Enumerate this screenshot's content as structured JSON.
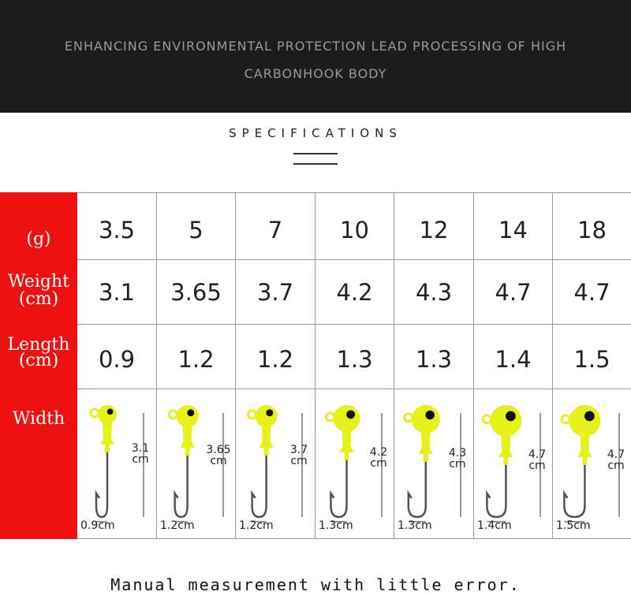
{
  "banner": {
    "line1": "ENHANCING ENVIRONMENTAL PROTECTION LEAD PROCESSING OF HIGH",
    "line2": "CARBONHOOK BODY"
  },
  "specs": {
    "title": "SPECIFICATIONS"
  },
  "table": {
    "row_headers": {
      "grams": "(g)",
      "weight": "Weight",
      "weight_unit": "(cm)",
      "length": "Length",
      "length_unit": "(cm)",
      "width": "Width"
    },
    "grams": [
      "3.5",
      "5",
      "7",
      "10",
      "12",
      "14",
      "18"
    ],
    "weight": [
      "3.1",
      "3.65",
      "3.7",
      "4.2",
      "4.3",
      "4.7",
      "4.7"
    ],
    "length": [
      "0.9",
      "1.2",
      "1.2",
      "1.3",
      "1.3",
      "1.4",
      "1.5"
    ],
    "lures": [
      {
        "length_label": "3.1",
        "unit": "cm",
        "width_label": "0.9cm"
      },
      {
        "length_label": "3.65",
        "unit": "cm",
        "width_label": "1.2cm"
      },
      {
        "length_label": "3.7",
        "unit": "cm",
        "width_label": "1.2cm"
      },
      {
        "length_label": "4.2",
        "unit": "cm",
        "width_label": "1.3cm"
      },
      {
        "length_label": "4.3",
        "unit": "cm",
        "width_label": "1.3cm"
      },
      {
        "length_label": "4.7",
        "unit": "cm",
        "width_label": "1.4cm"
      },
      {
        "length_label": "4.7",
        "unit": "cm",
        "width_label": "1.5cm"
      }
    ]
  },
  "footer": {
    "note": "Manual measurement with little error."
  },
  "colors": {
    "header_red": "#ee1111",
    "lure_yellow": "#e6f01a",
    "banner": "#1c1c1c"
  }
}
